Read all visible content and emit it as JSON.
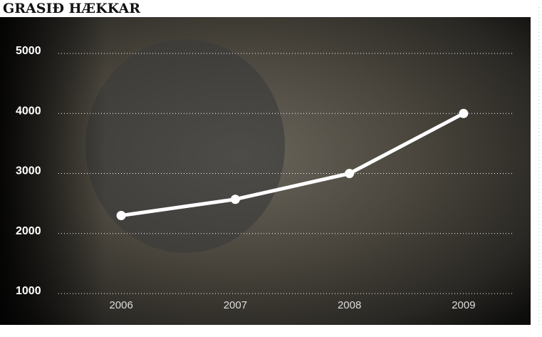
{
  "chart_data": {
    "type": "line",
    "title": "GRASIÐ HÆKKAR",
    "categories": [
      "2006",
      "2007",
      "2008",
      "2009"
    ],
    "series": [
      {
        "name": null,
        "color": "#ffffff",
        "values": [
          2300,
          2570,
          3000,
          4000
        ]
      }
    ],
    "ylim": [
      1000,
      5000
    ],
    "yticks": [
      1000,
      2000,
      3000,
      4000,
      5000
    ],
    "grid": true
  }
}
